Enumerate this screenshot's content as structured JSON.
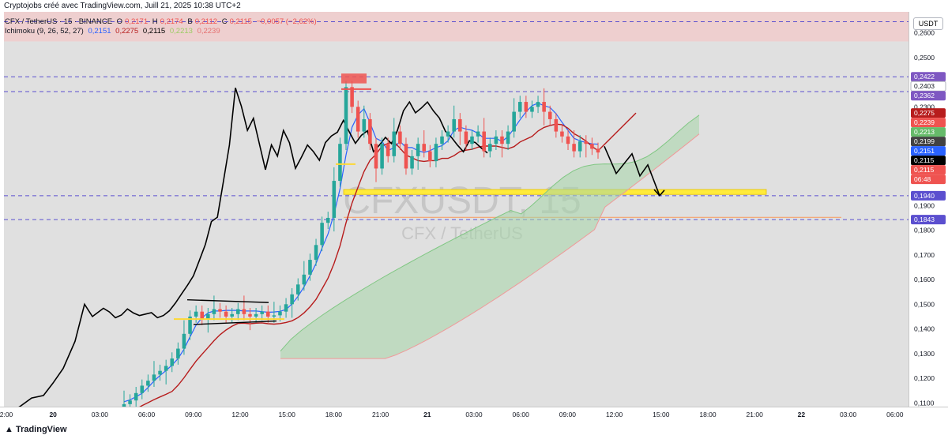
{
  "header": {
    "attribution": "Cryptojobs créé avec TradingView.com, Juill 21, 2025 10:38 UTC+2"
  },
  "legend": {
    "symbol_line": "CFX / TetherUS · 15 · BINANCE",
    "ohlc": {
      "o_label": "O",
      "o": "0,2171",
      "h_label": "H",
      "h": "0,2174",
      "b_label": "B",
      "b": "0,2112",
      "c_label": "C",
      "c": "0,2115",
      "change": "−0,0057 (−2,62%)"
    },
    "ichimoku_label": "Ichimoku (9, 26, 52, 27)",
    "ichimoku_values": [
      "0,2151",
      "0,2275",
      "0,2115",
      "0,2213",
      "0,2239"
    ]
  },
  "watermark": {
    "symbol": "CFXUSDT, 15",
    "name": "CFX / TetherUS"
  },
  "price_axis": {
    "unit": "USDT"
  },
  "footer": {
    "brand": "TradingView"
  },
  "colors": {
    "chart_bg": "#e0e0e0",
    "candle_up": "#26a69a",
    "candle_down": "#ef5350",
    "tenkan": "#2962ff",
    "kijun": "#b71c1c",
    "lagging": "#000000",
    "cloud_green": "#a5d6a7",
    "cloud_red": "#ef9a9a",
    "level_line": "#5b4fcf",
    "highlight": "#ffeb3b"
  },
  "chart_data": {
    "type": "candlestick",
    "y_ticks": [
      "0,2600",
      "0,2500",
      "0,2400",
      "0,2300",
      "0,2200",
      "0,2100",
      "0,2000",
      "0,1900",
      "0,1800",
      "0,1700",
      "0,1600",
      "0,1500",
      "0,1400",
      "0,1300",
      "0,1200",
      "0,1100"
    ],
    "y_tick_values": [
      0.26,
      0.25,
      0.24,
      0.23,
      0.22,
      0.21,
      0.2,
      0.19,
      0.18,
      0.17,
      0.16,
      0.15,
      0.14,
      0.13,
      0.12,
      0.11
    ],
    "ylim": [
      0.1085,
      0.2685
    ],
    "x_ticks": [
      "2:00",
      "20",
      "03:00",
      "06:00",
      "09:00",
      "12:00",
      "15:00",
      "18:00",
      "21:00",
      "21",
      "03:00",
      "06:00",
      "09:00",
      "12:00",
      "15:00",
      "18:00",
      "21:00",
      "22",
      "03:00",
      "06:00"
    ],
    "horizontal_levels": [
      0.2422,
      0.2362,
      0.194,
      0.1843,
      0.2645
    ],
    "axis_tags": [
      {
        "label": "0,2422",
        "value": 0.2422,
        "color": "#7e57c2"
      },
      {
        "label": "0,2403",
        "value": 0.2403,
        "color": "#ffffff"
      },
      {
        "label": "0,2362",
        "value": 0.2362,
        "color": "#7e57c2"
      },
      {
        "label": "0,2275",
        "value": 0.2275,
        "color": "#b71c1c"
      },
      {
        "label": "0,2239",
        "value": 0.2239,
        "color": "#ef5350"
      },
      {
        "label": "0,2213",
        "value": 0.2213,
        "color": "#66bb6a"
      },
      {
        "label": "0,2199",
        "value": 0.2199,
        "color": "#424242"
      },
      {
        "label": "0,2151",
        "value": 0.2151,
        "color": "#2962ff"
      },
      {
        "label": "0,2115",
        "value": 0.2115,
        "color": "#000000"
      },
      {
        "label": "0,2115",
        "value": 0.2115,
        "color": "#ef5350"
      },
      {
        "label": "06:48",
        "value": 0.2075,
        "color": "#ef5350"
      },
      {
        "label": "0,1940",
        "value": 0.194,
        "color": "#5b4fcf"
      },
      {
        "label": "0,1843",
        "value": 0.1843,
        "color": "#5b4fcf"
      }
    ],
    "candles_close": [
      0.1095,
      0.111,
      0.114,
      0.117,
      0.119,
      0.1215,
      0.123,
      0.125,
      0.128,
      0.132,
      0.138,
      0.145,
      0.147,
      0.144,
      0.146,
      0.148,
      0.147,
      0.145,
      0.146,
      0.148,
      0.146,
      0.145,
      0.146,
      0.147,
      0.145,
      0.1455,
      0.147,
      0.15,
      0.154,
      0.158,
      0.162,
      0.168,
      0.174,
      0.183,
      0.185,
      0.2,
      0.215,
      0.238,
      0.23,
      0.22,
      0.225,
      0.215,
      0.205,
      0.215,
      0.21,
      0.22,
      0.215,
      0.205,
      0.21,
      0.215,
      0.212,
      0.208,
      0.215,
      0.218,
      0.22,
      0.225,
      0.22,
      0.215,
      0.218,
      0.22,
      0.212,
      0.215,
      0.218,
      0.215,
      0.22,
      0.228,
      0.232,
      0.228,
      0.23,
      0.232,
      0.228,
      0.225,
      0.22,
      0.218,
      0.215,
      0.212,
      0.216,
      0.215,
      0.213,
      0.2115
    ]
  }
}
